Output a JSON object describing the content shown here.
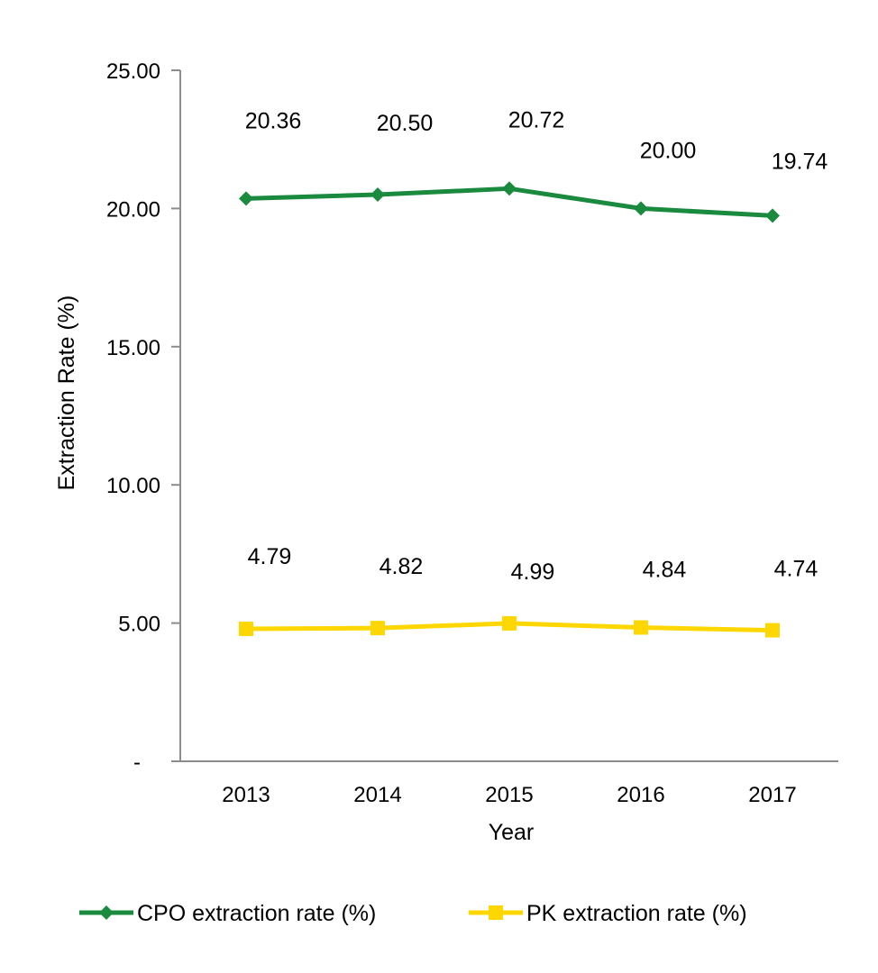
{
  "chart_data": {
    "type": "line",
    "title": "",
    "xlabel": "Year",
    "ylabel": "Extraction Rate (%)",
    "ylim": [
      0,
      25
    ],
    "y_ticks": [
      0,
      5,
      10,
      15,
      20,
      25
    ],
    "y_tick_labels": [
      "-",
      "5.00",
      "10.00",
      "15.00",
      "20.00",
      "25.00"
    ],
    "categories": [
      "2013",
      "2014",
      "2015",
      "2016",
      "2017"
    ],
    "grid": false,
    "legend_position": "bottom",
    "series": [
      {
        "name": "CPO extraction rate (%)",
        "values": [
          20.36,
          20.5,
          20.72,
          20.0,
          19.74
        ],
        "labels": [
          "20.36",
          "20.50",
          "20.72",
          "20.00",
          "19.74"
        ],
        "color": "#1a8a3e",
        "marker": "diamond"
      },
      {
        "name": "PK extraction rate (%)",
        "values": [
          4.79,
          4.82,
          4.99,
          4.84,
          4.74
        ],
        "labels": [
          "4.79",
          "4.82",
          "4.99",
          "4.84",
          "4.74"
        ],
        "color": "#ffd700",
        "marker": "square"
      }
    ]
  }
}
